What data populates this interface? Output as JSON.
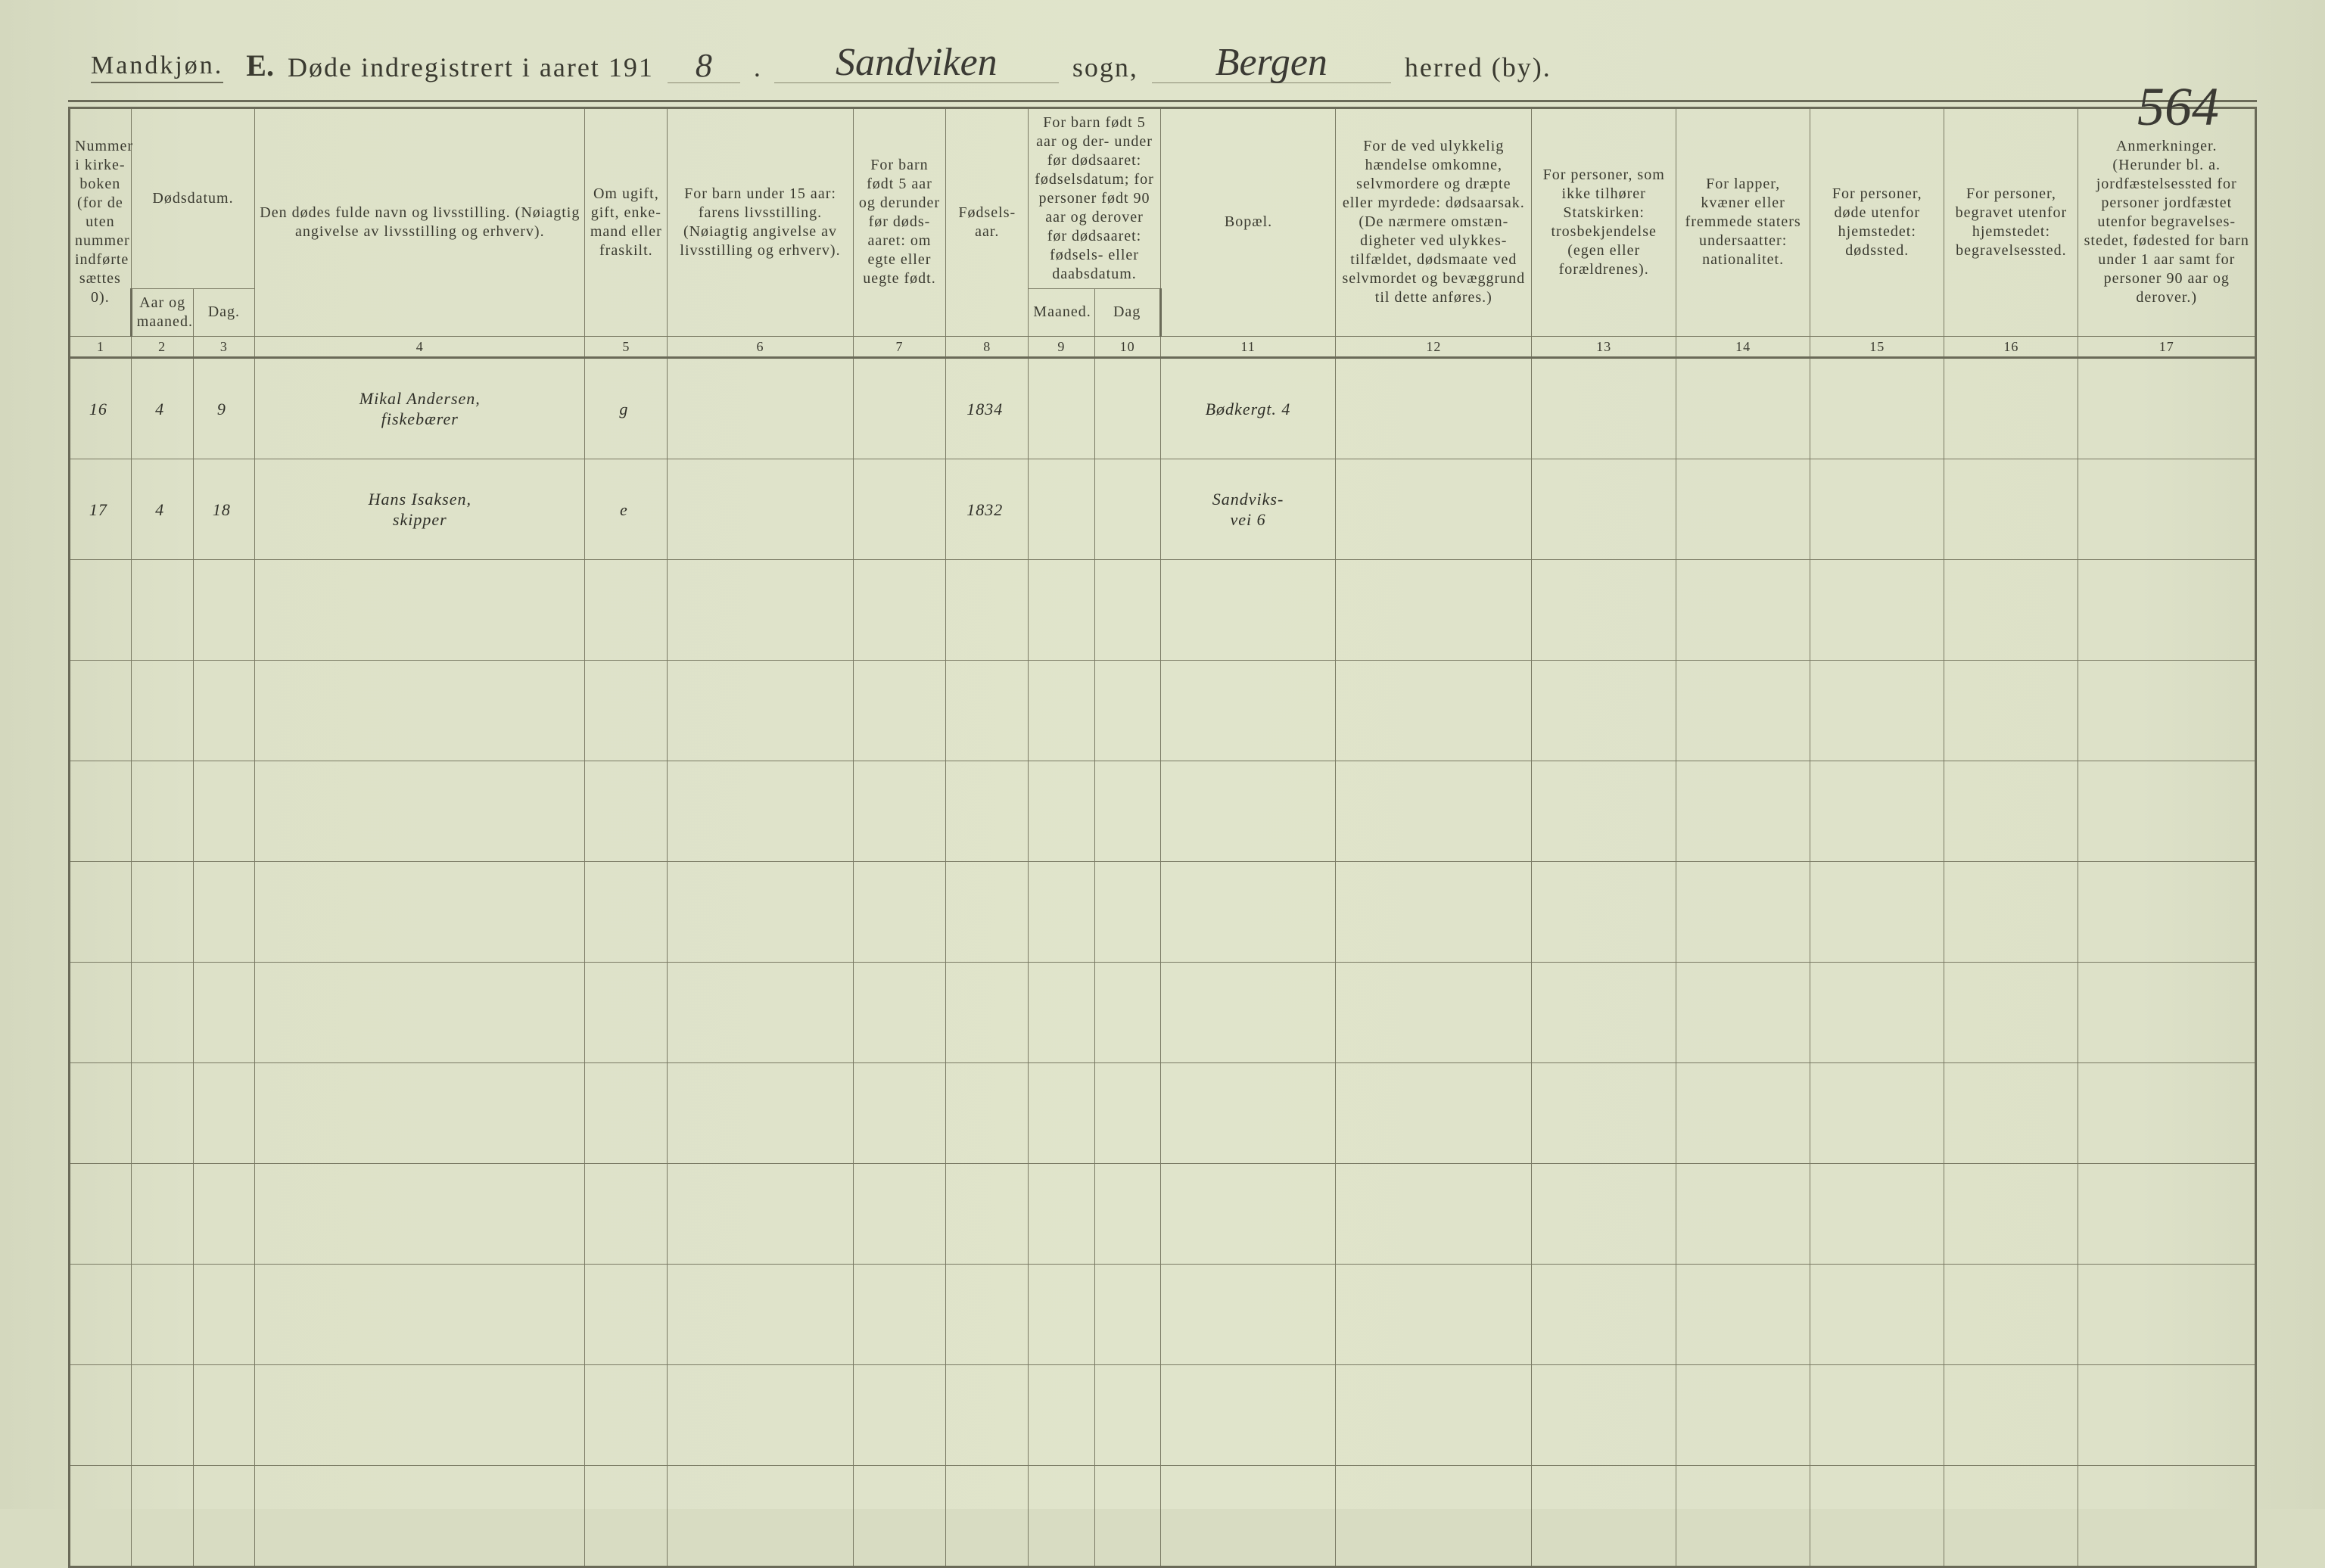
{
  "colors": {
    "paper_bg": "#dde1c8",
    "rule": "#6a6a58",
    "ink_print": "#3a3a30",
    "ink_script": "#2f2f28"
  },
  "typography": {
    "print_font": "Times New Roman",
    "script_font": "Brush Script MT",
    "header_fontsize_pt": 28,
    "colnum_fontsize_pt": 14,
    "body_script_fontsize_pt": 30
  },
  "header": {
    "mandkjon": "Mandkjøn.",
    "title_prefix": "E.",
    "title_text": "Døde indregistrert i aaret 191",
    "year_digit": "8",
    "sogn_label": "sogn,",
    "sogn_value": "Sandviken",
    "herred_label": "herred (by).",
    "herred_value": "Bergen",
    "page_number": "564"
  },
  "table": {
    "col_widths_pct": [
      3.0,
      3.0,
      3.0,
      16.0,
      4.0,
      9.0,
      4.5,
      4.0,
      3.2,
      3.2,
      8.5,
      9.5,
      7.0,
      6.5,
      6.5,
      6.5,
      8.6
    ],
    "columns": [
      {
        "num": "1",
        "label": "Nummer i kirke-\nboken\n(for de\nuten\nnummer\nindførte\nsættes\n0)."
      },
      {
        "num": "2",
        "label": "Aar\nog\nmaaned."
      },
      {
        "num": "3",
        "label": "Dag."
      },
      {
        "num": "4",
        "label": "Den dødes fulde navn og livsstilling.\n(Nøiagtig angivelse av livsstilling og erhverv)."
      },
      {
        "num": "5",
        "label": "Om\nugift,\ngift,\nenke-\nmand\neller\nfraskilt."
      },
      {
        "num": "6",
        "label": "For barn under 15 aar:\nfarens livsstilling.\n(Nøiagtig angivelse av\nlivsstilling og erhverv)."
      },
      {
        "num": "7",
        "label": "For barn\nfødt\n5 aar og\nderunder\nfør døds-\naaret:\nom egte\neller\nuegte\nfødt."
      },
      {
        "num": "8",
        "label": "Fødsels-\naar."
      },
      {
        "num": "9",
        "label": "Maaned."
      },
      {
        "num": "10",
        "label": "Dag"
      },
      {
        "num": "11",
        "label": "Bopæl."
      },
      {
        "num": "12",
        "label": "For de ved ulykkelig\nhændelse omkomne,\nselvmordere og\ndræpte eller myrdede:\ndødsaarsak.\n(De nærmere omstæn-\ndigheter ved ulykkes-\ntilfældet, dødsmaate ved\nselvmordet og bevæggrund\ntil dette anføres.)"
      },
      {
        "num": "13",
        "label": "For personer,\nsom ikke tilhører\nStatskirken:\ntrosbekjendelse\n(egen eller forældrenes)."
      },
      {
        "num": "14",
        "label": "For lapper, kvæner\neller fremmede\nstaters undersaatter:\nnationalitet."
      },
      {
        "num": "15",
        "label": "For personer, døde\nutenfor hjemstedet:\ndødssted."
      },
      {
        "num": "16",
        "label": "For personer, begravet\nutenfor hjemstedet:\nbegravelsessted."
      },
      {
        "num": "17",
        "label": "Anmerkninger.\n(Herunder bl. a.\njordfæstelsessted for\npersoner jordfæstet\nutenfor begravelses-\nstedet, fødested for\nbarn under 1 aar\nsamt for personer\n90 aar og derover.)"
      }
    ],
    "group_header_2_3": "Dødsdatum.",
    "group_header_9_10": "For barn født\n5 aar og der-\nunder før\ndødsaaret:\nfødselsdatum;\nfor personer\nfødt 90 aar\nog derover før\ndødsaaret:\nfødsels- eller\ndaabsdatum.",
    "rows": [
      {
        "c1": "16",
        "c2": "4",
        "c3": "9",
        "c4": "Mikal Andersen,\nfiskebærer",
        "c5": "g",
        "c6": "",
        "c7": "",
        "c8": "1834",
        "c9": "",
        "c10": "",
        "c11": "Bødkergt. 4",
        "c12": "",
        "c13": "",
        "c14": "",
        "c15": "",
        "c16": "",
        "c17": ""
      },
      {
        "c1": "17",
        "c2": "4",
        "c3": "18",
        "c4": "Hans Isaksen,\nskipper",
        "c5": "e",
        "c6": "",
        "c7": "",
        "c8": "1832",
        "c9": "",
        "c10": "",
        "c11": "Sandviks-\nvei 6",
        "c12": "",
        "c13": "",
        "c14": "",
        "c15": "",
        "c16": "",
        "c17": ""
      },
      {
        "c1": "",
        "c2": "",
        "c3": "",
        "c4": "",
        "c5": "",
        "c6": "",
        "c7": "",
        "c8": "",
        "c9": "",
        "c10": "",
        "c11": "",
        "c12": "",
        "c13": "",
        "c14": "",
        "c15": "",
        "c16": "",
        "c17": ""
      },
      {
        "c1": "",
        "c2": "",
        "c3": "",
        "c4": "",
        "c5": "",
        "c6": "",
        "c7": "",
        "c8": "",
        "c9": "",
        "c10": "",
        "c11": "",
        "c12": "",
        "c13": "",
        "c14": "",
        "c15": "",
        "c16": "",
        "c17": ""
      },
      {
        "c1": "",
        "c2": "",
        "c3": "",
        "c4": "",
        "c5": "",
        "c6": "",
        "c7": "",
        "c8": "",
        "c9": "",
        "c10": "",
        "c11": "",
        "c12": "",
        "c13": "",
        "c14": "",
        "c15": "",
        "c16": "",
        "c17": ""
      },
      {
        "c1": "",
        "c2": "",
        "c3": "",
        "c4": "",
        "c5": "",
        "c6": "",
        "c7": "",
        "c8": "",
        "c9": "",
        "c10": "",
        "c11": "",
        "c12": "",
        "c13": "",
        "c14": "",
        "c15": "",
        "c16": "",
        "c17": ""
      },
      {
        "c1": "",
        "c2": "",
        "c3": "",
        "c4": "",
        "c5": "",
        "c6": "",
        "c7": "",
        "c8": "",
        "c9": "",
        "c10": "",
        "c11": "",
        "c12": "",
        "c13": "",
        "c14": "",
        "c15": "",
        "c16": "",
        "c17": ""
      },
      {
        "c1": "",
        "c2": "",
        "c3": "",
        "c4": "",
        "c5": "",
        "c6": "",
        "c7": "",
        "c8": "",
        "c9": "",
        "c10": "",
        "c11": "",
        "c12": "",
        "c13": "",
        "c14": "",
        "c15": "",
        "c16": "",
        "c17": ""
      },
      {
        "c1": "",
        "c2": "",
        "c3": "",
        "c4": "",
        "c5": "",
        "c6": "",
        "c7": "",
        "c8": "",
        "c9": "",
        "c10": "",
        "c11": "",
        "c12": "",
        "c13": "",
        "c14": "",
        "c15": "",
        "c16": "",
        "c17": ""
      },
      {
        "c1": "",
        "c2": "",
        "c3": "",
        "c4": "",
        "c5": "",
        "c6": "",
        "c7": "",
        "c8": "",
        "c9": "",
        "c10": "",
        "c11": "",
        "c12": "",
        "c13": "",
        "c14": "",
        "c15": "",
        "c16": "",
        "c17": ""
      },
      {
        "c1": "",
        "c2": "",
        "c3": "",
        "c4": "",
        "c5": "",
        "c6": "",
        "c7": "",
        "c8": "",
        "c9": "",
        "c10": "",
        "c11": "",
        "c12": "",
        "c13": "",
        "c14": "",
        "c15": "",
        "c16": "",
        "c17": ""
      },
      {
        "c1": "",
        "c2": "",
        "c3": "",
        "c4": "",
        "c5": "",
        "c6": "",
        "c7": "",
        "c8": "",
        "c9": "",
        "c10": "",
        "c11": "",
        "c12": "",
        "c13": "",
        "c14": "",
        "c15": "",
        "c16": "",
        "c17": ""
      }
    ]
  }
}
